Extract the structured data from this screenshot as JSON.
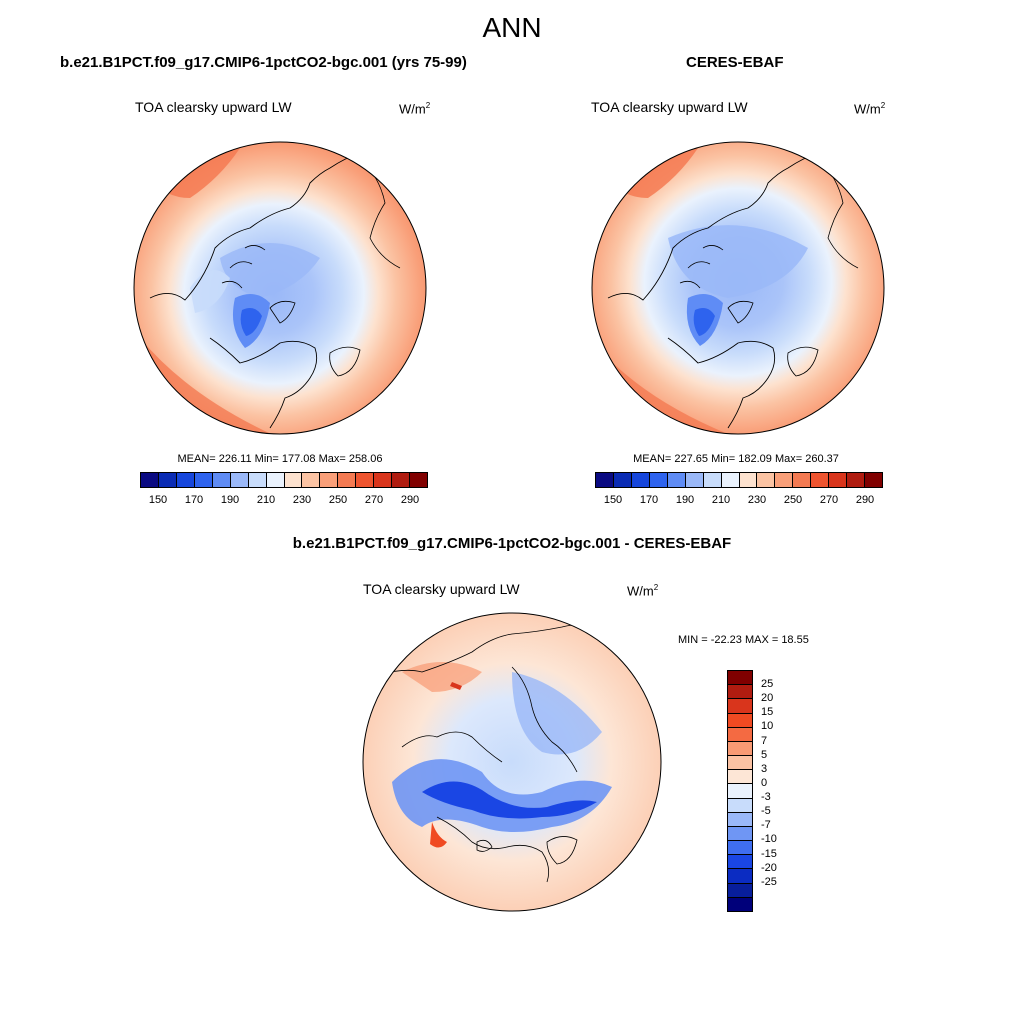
{
  "title": "ANN",
  "panels": {
    "model": {
      "title": "b.e21.B1PCT.f09_g17.CMIP6-1pctCO2-bgc.001 (yrs 75-99)",
      "variable": "TOA clearsky upward LW",
      "units_base": "W/m",
      "units_exp": "2",
      "stats": "MEAN= 226.11  Min= 177.08  Max= 258.06"
    },
    "obs": {
      "title": "CERES-EBAF",
      "variable": "TOA clearsky upward LW",
      "units_base": "W/m",
      "units_exp": "2",
      "stats": "MEAN= 227.65  Min= 182.09  Max= 260.37"
    },
    "diff": {
      "title": "b.e21.B1PCT.f09_g17.CMIP6-1pctCO2-bgc.001 - CERES-EBAF",
      "variable": "TOA clearsky upward LW",
      "units_base": "W/m",
      "units_exp": "2",
      "stats": "MIN = -22.23 MAX =  18.55"
    }
  },
  "abs_colorbar": {
    "colors": [
      "#0a0a82",
      "#0a2bb4",
      "#1646dc",
      "#2e63ee",
      "#5f8cf5",
      "#9ab8f8",
      "#c8dcfb",
      "#eaf2fd",
      "#fde2cf",
      "#fbc3a3",
      "#f99f79",
      "#f47a52",
      "#ee542f",
      "#d9351c",
      "#b01c10",
      "#800000"
    ],
    "labels": [
      "150",
      "170",
      "190",
      "210",
      "230",
      "250",
      "270",
      "290"
    ]
  },
  "diff_colorbar": {
    "colors": [
      "#800000",
      "#b01c10",
      "#d9351c",
      "#f04a22",
      "#f46a42",
      "#f89a74",
      "#fbc2a3",
      "#fde6d6",
      "#eaf2fd",
      "#c8dcfb",
      "#9ab8f8",
      "#6f96f4",
      "#3f6ef0",
      "#1a46e4",
      "#0b2cc2",
      "#081e9c",
      "#00007a"
    ],
    "labels": [
      "25",
      "20",
      "15",
      "10",
      "7",
      "5",
      "3",
      "0",
      "-3",
      "-5",
      "-7",
      "-10",
      "-15",
      "-20",
      "-25"
    ]
  }
}
